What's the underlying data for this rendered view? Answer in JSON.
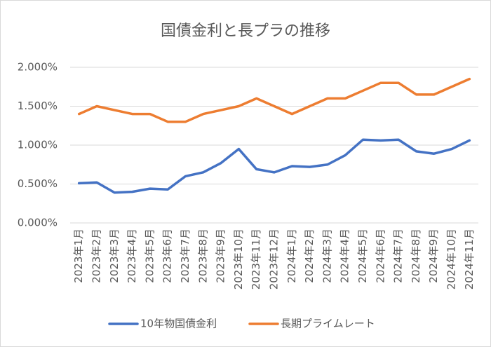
{
  "chart_data": {
    "type": "line",
    "title": "国債金利と長プラの推移",
    "categories": [
      "2023年1月",
      "2023年2月",
      "2023年3月",
      "2023年4月",
      "2023年5月",
      "2023年6月",
      "2023年7月",
      "2023年8月",
      "2023年9月",
      "2023年10月",
      "2023年11月",
      "2023年12月",
      "2024年1月",
      "2024年2月",
      "2024年3月",
      "2024年4月",
      "2024年5月",
      "2024年6月",
      "2024年7月",
      "2024年8月",
      "2024年9月",
      "2024年10月",
      "2024年11月"
    ],
    "series": [
      {
        "name": "10年物国債金利",
        "color": "#4472c4",
        "values": [
          0.51,
          0.52,
          0.39,
          0.4,
          0.44,
          0.43,
          0.6,
          0.65,
          0.77,
          0.95,
          0.69,
          0.65,
          0.73,
          0.72,
          0.75,
          0.87,
          1.07,
          1.06,
          1.07,
          0.92,
          0.89,
          0.95,
          1.06
        ]
      },
      {
        "name": "長期プライムレート",
        "color": "#ed7d31",
        "values": [
          1.4,
          1.5,
          1.45,
          1.4,
          1.4,
          1.3,
          1.3,
          1.4,
          1.45,
          1.5,
          1.6,
          1.5,
          1.4,
          1.5,
          1.6,
          1.6,
          1.7,
          1.8,
          1.8,
          1.65,
          1.65,
          1.75,
          1.85
        ]
      }
    ],
    "ylim": [
      0,
      2
    ],
    "yticks": [
      {
        "value": 0,
        "label": "0.000%"
      },
      {
        "value": 0.5,
        "label": "0.500%"
      },
      {
        "value": 1,
        "label": "1.000%"
      },
      {
        "value": 1.5,
        "label": "1.500%"
      },
      {
        "value": 2,
        "label": "2.000%"
      }
    ],
    "grid": true,
    "legend": "bottom"
  }
}
